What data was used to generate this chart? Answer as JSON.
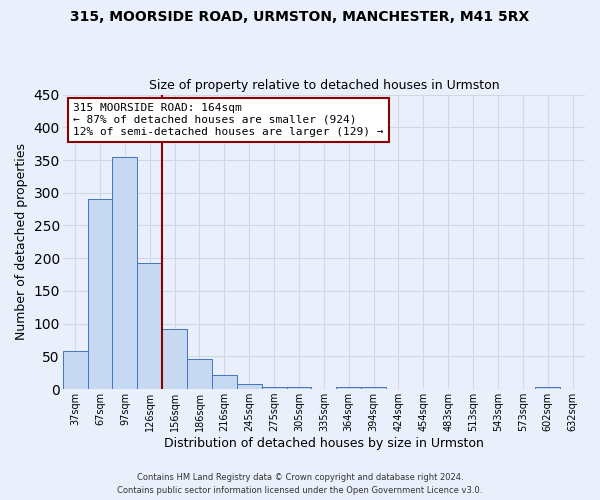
{
  "title": "315, MOORSIDE ROAD, URMSTON, MANCHESTER, M41 5RX",
  "subtitle": "Size of property relative to detached houses in Urmston",
  "xlabel": "Distribution of detached houses by size in Urmston",
  "ylabel": "Number of detached properties",
  "bar_labels": [
    "37sqm",
    "67sqm",
    "97sqm",
    "126sqm",
    "156sqm",
    "186sqm",
    "216sqm",
    "245sqm",
    "275sqm",
    "305sqm",
    "335sqm",
    "364sqm",
    "394sqm",
    "424sqm",
    "454sqm",
    "483sqm",
    "513sqm",
    "543sqm",
    "573sqm",
    "602sqm",
    "632sqm"
  ],
  "bar_values": [
    58,
    290,
    355,
    192,
    92,
    46,
    21,
    8,
    3,
    3,
    0,
    3,
    3,
    0,
    0,
    0,
    0,
    0,
    0,
    3,
    0
  ],
  "bar_color": "#c6d9f0",
  "bar_edge_color": "#4472c4",
  "vline_x": 3.5,
  "vline_color": "#8B0000",
  "annotation_title": "315 MOORSIDE ROAD: 164sqm",
  "annotation_line1": "← 87% of detached houses are smaller (924)",
  "annotation_line2": "12% of semi-detached houses are larger (129) →",
  "annotation_box_color": "#ffffff",
  "annotation_box_edge": "#8B0000",
  "ylim": [
    0,
    450
  ],
  "yticks": [
    0,
    50,
    100,
    150,
    200,
    250,
    300,
    350,
    400,
    450
  ],
  "bg_color": "#eaf0fb",
  "grid_color": "#d0d8e8",
  "footer_line1": "Contains HM Land Registry data © Crown copyright and database right 2024.",
  "footer_line2": "Contains public sector information licensed under the Open Government Licence v3.0."
}
